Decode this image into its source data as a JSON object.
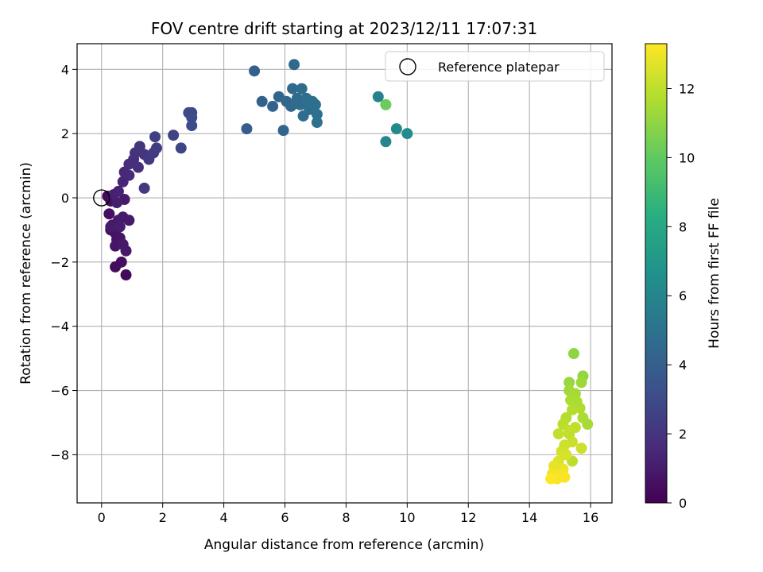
{
  "chart_data": {
    "type": "scatter",
    "title": "FOV centre drift starting at 2023/12/11 17:07:31",
    "xlabel": "Angular distance from reference (arcmin)",
    "ylabel": "Rotation from reference (arcmin)",
    "xlim": [
      -0.8,
      16.7
    ],
    "ylim": [
      -9.5,
      4.8
    ],
    "xticks": [
      0,
      2,
      4,
      6,
      8,
      10,
      12,
      14,
      16
    ],
    "yticks": [
      -8,
      -6,
      -4,
      -2,
      0,
      2,
      4
    ],
    "grid": true,
    "legend": {
      "placement": "top-right",
      "entries": [
        "Reference platepar"
      ]
    },
    "colorbar": {
      "label": "Hours from first FF file",
      "range": [
        0,
        13.3
      ],
      "ticks": [
        0,
        2,
        4,
        6,
        8,
        10,
        12
      ],
      "colormap": "viridis"
    },
    "reference_point": {
      "x": 0,
      "y": 0
    },
    "points": [
      {
        "x": 0.2,
        "y": 0.05,
        "h": 0.3
      },
      {
        "x": 0.3,
        "y": -0.1,
        "h": 0.4
      },
      {
        "x": 0.25,
        "y": -0.5,
        "h": 0.5
      },
      {
        "x": 0.35,
        "y": -0.85,
        "h": 0.6
      },
      {
        "x": 0.3,
        "y": -1.0,
        "h": 0.6
      },
      {
        "x": 0.45,
        "y": -1.1,
        "h": 0.7
      },
      {
        "x": 0.5,
        "y": -1.3,
        "h": 0.7
      },
      {
        "x": 0.45,
        "y": -1.5,
        "h": 0.8
      },
      {
        "x": 0.6,
        "y": -1.25,
        "h": 0.8
      },
      {
        "x": 0.7,
        "y": -1.45,
        "h": 0.9
      },
      {
        "x": 0.8,
        "y": -1.65,
        "h": 0.9
      },
      {
        "x": 0.55,
        "y": -0.7,
        "h": 0.9
      },
      {
        "x": 0.7,
        "y": -0.6,
        "h": 1.0
      },
      {
        "x": 0.9,
        "y": -0.7,
        "h": 1.0
      },
      {
        "x": 0.75,
        "y": -0.05,
        "h": 1.0
      },
      {
        "x": 0.5,
        "y": -0.15,
        "h": 1.1
      },
      {
        "x": 0.65,
        "y": -2.0,
        "h": 0.5
      },
      {
        "x": 0.45,
        "y": -2.15,
        "h": 0.4
      },
      {
        "x": 0.8,
        "y": -2.4,
        "h": 0.3
      },
      {
        "x": 0.3,
        "y": -0.9,
        "h": 1.0
      },
      {
        "x": 0.6,
        "y": -0.9,
        "h": 1.1
      },
      {
        "x": 0.4,
        "y": 0.1,
        "h": 1.2
      },
      {
        "x": 0.55,
        "y": 0.2,
        "h": 1.3
      },
      {
        "x": 0.7,
        "y": 0.5,
        "h": 1.4
      },
      {
        "x": 0.75,
        "y": 0.8,
        "h": 1.5
      },
      {
        "x": 0.9,
        "y": 0.7,
        "h": 1.6
      },
      {
        "x": 0.9,
        "y": 1.05,
        "h": 1.7
      },
      {
        "x": 1.05,
        "y": 1.2,
        "h": 1.8
      },
      {
        "x": 1.1,
        "y": 1.4,
        "h": 1.9
      },
      {
        "x": 1.25,
        "y": 1.6,
        "h": 2.0
      },
      {
        "x": 1.2,
        "y": 0.95,
        "h": 1.8
      },
      {
        "x": 1.4,
        "y": 1.35,
        "h": 2.0
      },
      {
        "x": 1.55,
        "y": 1.2,
        "h": 2.2
      },
      {
        "x": 1.7,
        "y": 1.4,
        "h": 2.3
      },
      {
        "x": 1.8,
        "y": 1.55,
        "h": 2.4
      },
      {
        "x": 1.75,
        "y": 1.9,
        "h": 2.5
      },
      {
        "x": 1.4,
        "y": 0.3,
        "h": 2.2
      },
      {
        "x": 2.35,
        "y": 1.95,
        "h": 2.6
      },
      {
        "x": 2.6,
        "y": 1.55,
        "h": 2.8
      },
      {
        "x": 2.85,
        "y": 2.65,
        "h": 2.9
      },
      {
        "x": 2.95,
        "y": 2.65,
        "h": 2.9
      },
      {
        "x": 2.95,
        "y": 2.5,
        "h": 3.0
      },
      {
        "x": 2.95,
        "y": 2.25,
        "h": 3.0
      },
      {
        "x": 4.75,
        "y": 2.15,
        "h": 3.9
      },
      {
        "x": 5.0,
        "y": 3.95,
        "h": 4.0
      },
      {
        "x": 5.25,
        "y": 3.0,
        "h": 4.1
      },
      {
        "x": 5.6,
        "y": 2.85,
        "h": 4.2
      },
      {
        "x": 5.8,
        "y": 3.15,
        "h": 4.3
      },
      {
        "x": 5.95,
        "y": 2.1,
        "h": 4.3
      },
      {
        "x": 6.05,
        "y": 3.0,
        "h": 4.4
      },
      {
        "x": 6.2,
        "y": 2.85,
        "h": 4.4
      },
      {
        "x": 6.25,
        "y": 3.4,
        "h": 4.5
      },
      {
        "x": 6.3,
        "y": 4.15,
        "h": 4.5
      },
      {
        "x": 6.4,
        "y": 3.1,
        "h": 4.6
      },
      {
        "x": 6.5,
        "y": 2.9,
        "h": 4.6
      },
      {
        "x": 6.55,
        "y": 3.4,
        "h": 4.7
      },
      {
        "x": 6.6,
        "y": 2.55,
        "h": 4.7
      },
      {
        "x": 6.7,
        "y": 3.1,
        "h": 4.8
      },
      {
        "x": 6.8,
        "y": 2.75,
        "h": 4.8
      },
      {
        "x": 6.9,
        "y": 3.0,
        "h": 4.9
      },
      {
        "x": 7.0,
        "y": 2.9,
        "h": 4.9
      },
      {
        "x": 7.05,
        "y": 2.6,
        "h": 5.0
      },
      {
        "x": 7.05,
        "y": 2.35,
        "h": 5.0
      },
      {
        "x": 6.35,
        "y": 2.95,
        "h": 4.6
      },
      {
        "x": 6.75,
        "y": 2.95,
        "h": 4.8
      },
      {
        "x": 9.05,
        "y": 3.15,
        "h": 5.9
      },
      {
        "x": 9.3,
        "y": 2.9,
        "h": 10.2
      },
      {
        "x": 9.3,
        "y": 1.75,
        "h": 6.1
      },
      {
        "x": 9.65,
        "y": 2.15,
        "h": 6.3
      },
      {
        "x": 10.0,
        "y": 2.0,
        "h": 6.4
      },
      {
        "x": 15.45,
        "y": -4.85,
        "h": 11.0
      },
      {
        "x": 15.75,
        "y": -5.55,
        "h": 11.1
      },
      {
        "x": 15.3,
        "y": -5.75,
        "h": 11.2
      },
      {
        "x": 15.7,
        "y": -5.75,
        "h": 11.3
      },
      {
        "x": 15.3,
        "y": -6.0,
        "h": 11.4
      },
      {
        "x": 15.5,
        "y": -6.1,
        "h": 11.5
      },
      {
        "x": 15.35,
        "y": -6.3,
        "h": 11.6
      },
      {
        "x": 15.65,
        "y": -6.55,
        "h": 11.7
      },
      {
        "x": 15.4,
        "y": -6.6,
        "h": 11.8
      },
      {
        "x": 15.75,
        "y": -6.85,
        "h": 11.6
      },
      {
        "x": 15.9,
        "y": -7.05,
        "h": 11.5
      },
      {
        "x": 15.2,
        "y": -6.85,
        "h": 11.8
      },
      {
        "x": 15.1,
        "y": -7.05,
        "h": 11.9
      },
      {
        "x": 15.5,
        "y": -7.15,
        "h": 12.0
      },
      {
        "x": 15.3,
        "y": -7.35,
        "h": 12.0
      },
      {
        "x": 14.95,
        "y": -7.35,
        "h": 12.1
      },
      {
        "x": 15.4,
        "y": -7.6,
        "h": 12.2
      },
      {
        "x": 15.15,
        "y": -7.7,
        "h": 12.3
      },
      {
        "x": 15.7,
        "y": -7.8,
        "h": 12.3
      },
      {
        "x": 15.05,
        "y": -7.9,
        "h": 12.4
      },
      {
        "x": 15.4,
        "y": -8.2,
        "h": 12.0
      },
      {
        "x": 14.95,
        "y": -8.2,
        "h": 12.6
      },
      {
        "x": 15.2,
        "y": -8.0,
        "h": 12.5
      },
      {
        "x": 14.8,
        "y": -8.35,
        "h": 12.8
      },
      {
        "x": 15.1,
        "y": -8.45,
        "h": 12.9
      },
      {
        "x": 14.75,
        "y": -8.6,
        "h": 13.0
      },
      {
        "x": 15.05,
        "y": -8.6,
        "h": 13.1
      },
      {
        "x": 14.9,
        "y": -8.75,
        "h": 13.2
      },
      {
        "x": 15.15,
        "y": -8.7,
        "h": 13.2
      },
      {
        "x": 14.7,
        "y": -8.75,
        "h": 13.3
      },
      {
        "x": 15.3,
        "y": -7.25,
        "h": 12.1
      },
      {
        "x": 15.55,
        "y": -6.35,
        "h": 11.6
      }
    ]
  }
}
